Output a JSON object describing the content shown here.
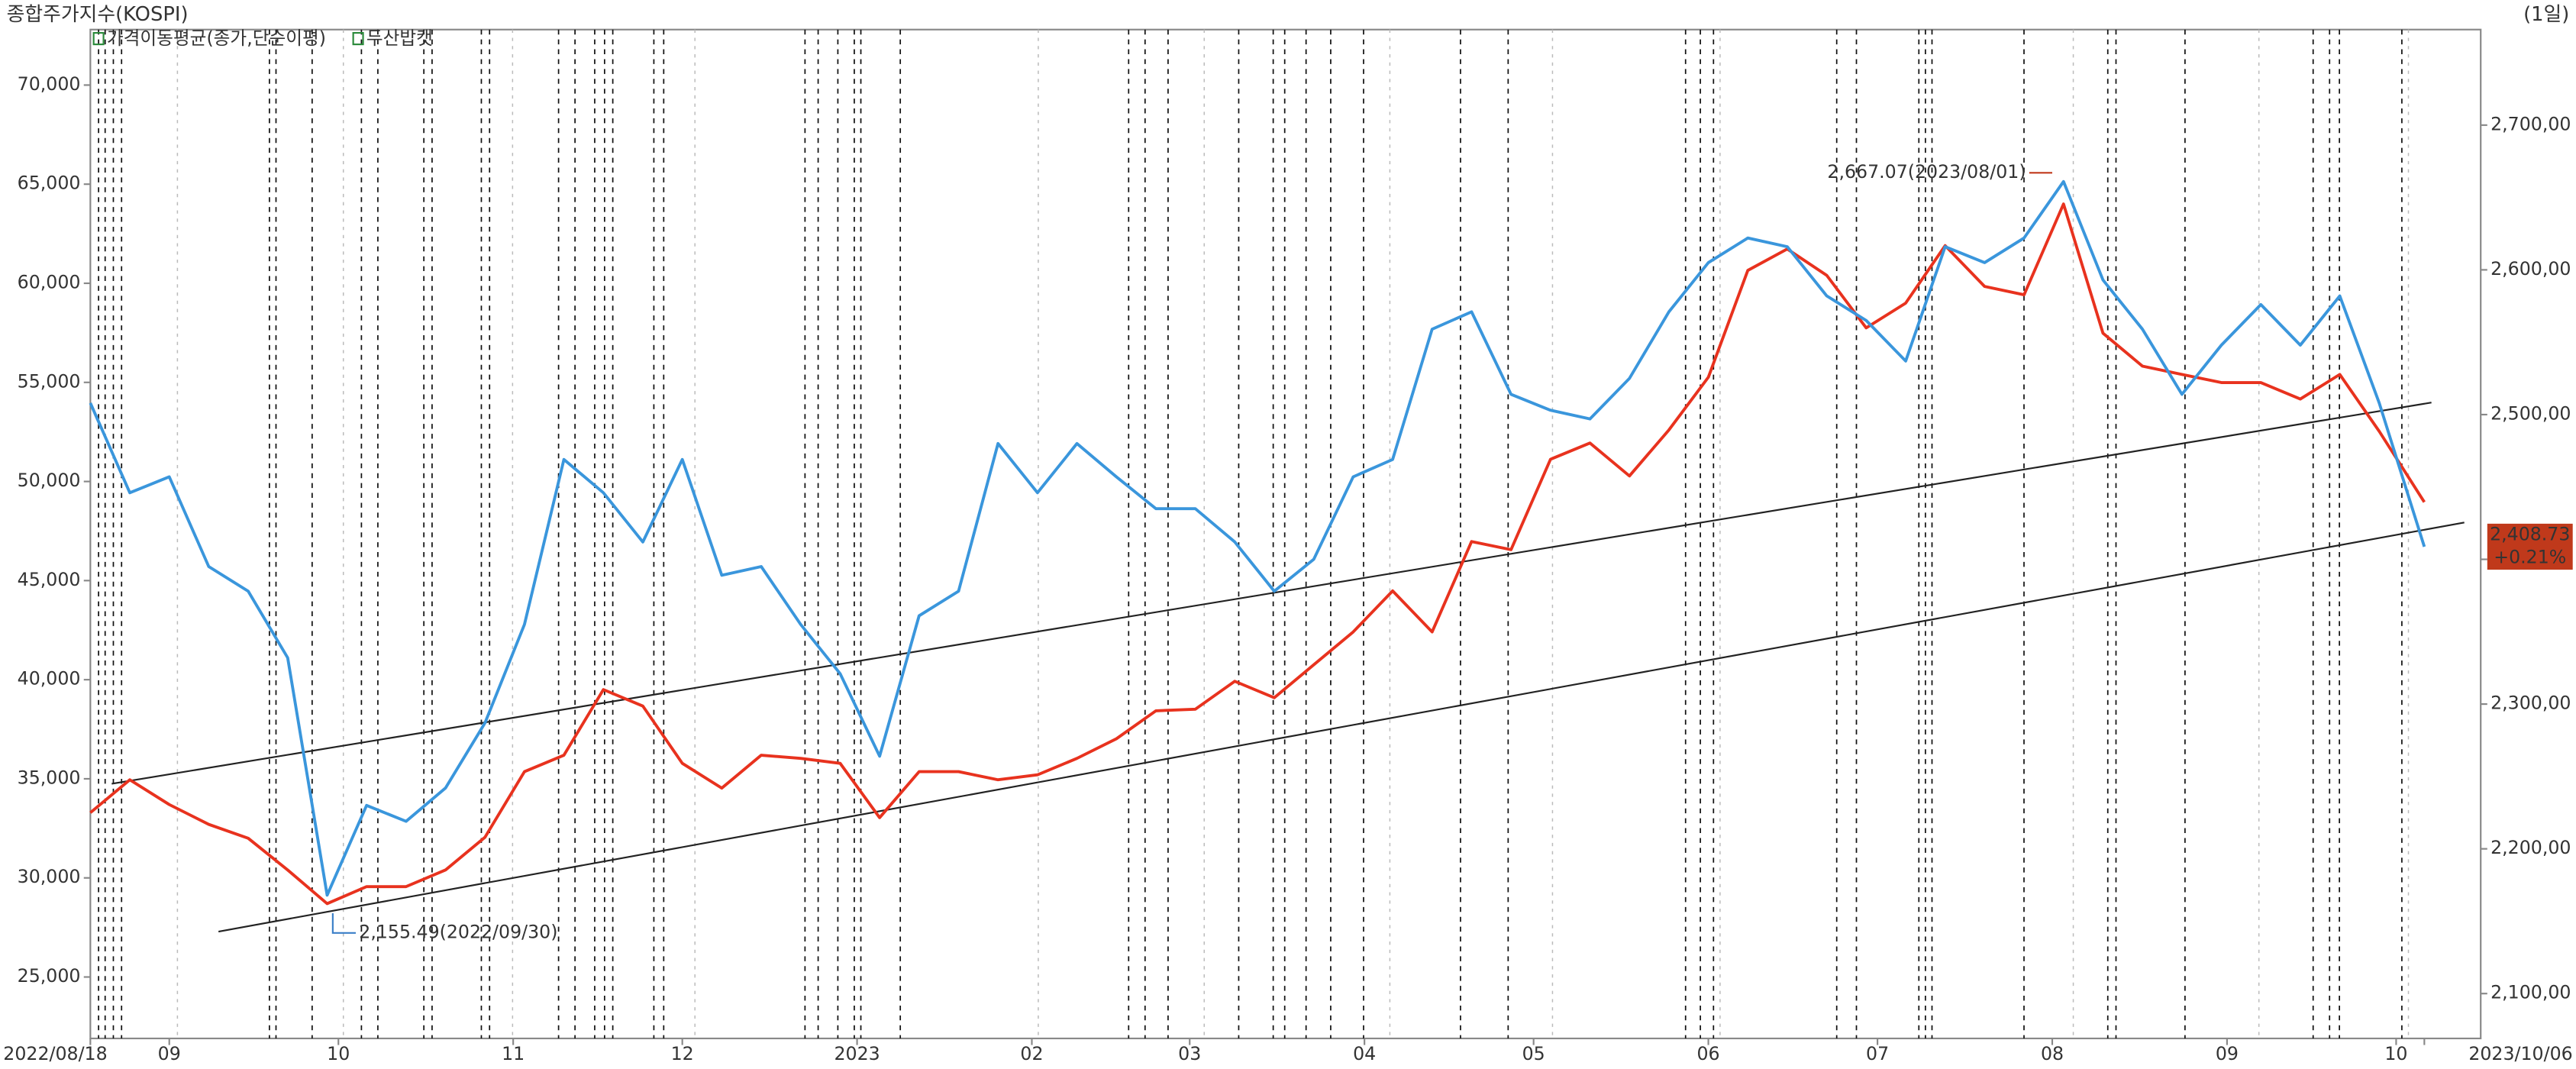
{
  "chart_data": {
    "type": "line",
    "title": "종합주가지수(KOSPI)",
    "period": "(1일)",
    "indicator": "가격이동평균(종가,단순이평)",
    "x": [
      "2022-08-18",
      "2022-08-25",
      "2022-09-01",
      "2022-09-08",
      "2022-09-15",
      "2022-09-22",
      "2022-09-29",
      "2022-10-06",
      "2022-10-13",
      "2022-10-20",
      "2022-10-27",
      "2022-11-03",
      "2022-11-10",
      "2022-11-17",
      "2022-11-24",
      "2022-12-01",
      "2022-12-08",
      "2022-12-15",
      "2022-12-22",
      "2022-12-29",
      "2023-01-05",
      "2023-01-12",
      "2023-01-19",
      "2023-01-26",
      "2023-02-02",
      "2023-02-09",
      "2023-02-16",
      "2023-02-23",
      "2023-03-02",
      "2023-03-09",
      "2023-03-16",
      "2023-03-23",
      "2023-03-30",
      "2023-04-06",
      "2023-04-13",
      "2023-04-20",
      "2023-04-27",
      "2023-05-04",
      "2023-05-11",
      "2023-05-18",
      "2023-05-25",
      "2023-06-01",
      "2023-06-08",
      "2023-06-15",
      "2023-06-22",
      "2023-06-29",
      "2023-07-06",
      "2023-07-13",
      "2023-07-20",
      "2023-07-27",
      "2023-08-03",
      "2023-08-10",
      "2023-08-17",
      "2023-08-24",
      "2023-08-31",
      "2023-09-07",
      "2023-09-14",
      "2023-09-21",
      "2023-09-28",
      "2023-10-06"
    ],
    "series": [
      {
        "name": "두산밥캣",
        "color": "#e8321e",
        "axis": "y",
        "values": [
          33290,
          34950,
          33700,
          32700,
          32000,
          30400,
          28700,
          29560,
          29560,
          30400,
          32050,
          35360,
          36190,
          39500,
          38670,
          35780,
          34530,
          36190,
          36030,
          35780,
          33040,
          35360,
          35360,
          34950,
          35200,
          36030,
          37020,
          38430,
          38510,
          39920,
          39090,
          40750,
          42410,
          44480,
          42410,
          46970,
          46560,
          51120,
          51940,
          50280,
          52600,
          55260,
          60650,
          61730,
          60400,
          57750,
          59000,
          61900,
          59840,
          59420,
          64000,
          57480,
          55820,
          55400,
          54990,
          54990,
          54160,
          55400,
          52530,
          48960
        ]
      },
      {
        "color": "#3a96dc",
        "axis": "y2",
        "values": [
          2508,
          2446,
          2457,
          2395,
          2378,
          2332,
          2168,
          2230,
          2219,
          2242,
          2287,
          2355,
          2469,
          2446,
          2412,
          2469,
          2389,
          2395,
          2355,
          2321,
          2264,
          2361,
          2378,
          2480,
          2446,
          2480,
          2457,
          2435,
          2435,
          2412,
          2378,
          2400,
          2457,
          2469,
          2559,
          2571,
          2514,
          2503,
          2497,
          2525,
          2571,
          2605,
          2622,
          2616,
          2582,
          2565,
          2537,
          2616,
          2605,
          2622,
          2661,
          2593,
          2559,
          2514,
          2548,
          2576,
          2548,
          2582,
          2508,
          2408.73
        ]
      }
    ],
    "xlim": [
      "2022-08-18",
      "2023-10-16"
    ],
    "xticks": [
      {
        "value": "2022-08-18",
        "label": "2022/08/18"
      },
      {
        "value": "2022-09-01",
        "label": "09"
      },
      {
        "value": "2022-10-01",
        "label": "10"
      },
      {
        "value": "2022-11-01",
        "label": "11"
      },
      {
        "value": "2022-12-01",
        "label": "12"
      },
      {
        "value": "2023-01-01",
        "label": "2023"
      },
      {
        "value": "2023-02-01",
        "label": "02"
      },
      {
        "value": "2023-03-01",
        "label": "03"
      },
      {
        "value": "2023-04-01",
        "label": "04"
      },
      {
        "value": "2023-05-01",
        "label": "05"
      },
      {
        "value": "2023-06-01",
        "label": "06"
      },
      {
        "value": "2023-07-01",
        "label": "07"
      },
      {
        "value": "2023-08-01",
        "label": "08"
      },
      {
        "value": "2023-09-01",
        "label": "09"
      },
      {
        "value": "2023-10-01",
        "label": "10"
      },
      {
        "value": "2023-10-06",
        "label": "2023/10/06"
      }
    ],
    "ylim": [
      21900,
      72800
    ],
    "yticks": [
      {
        "value": 25000,
        "label": "25,000"
      },
      {
        "value": 30000,
        "label": "30,000"
      },
      {
        "value": 35000,
        "label": "35,000"
      },
      {
        "value": 40000,
        "label": "40,000"
      },
      {
        "value": 45000,
        "label": "45,000"
      },
      {
        "value": 50000,
        "label": "50,000"
      },
      {
        "value": 55000,
        "label": "55,000"
      },
      {
        "value": 60000,
        "label": "60,000"
      },
      {
        "value": 65000,
        "label": "65,000"
      },
      {
        "value": 70000,
        "label": "70,000"
      }
    ],
    "y2lim": [
      2069,
      2766
    ],
    "y2ticks": [
      {
        "value": 2100,
        "label": "2,100,00"
      },
      {
        "value": 2200,
        "label": "2,200,00"
      },
      {
        "value": 2300,
        "label": "2,300,00"
      },
      {
        "value": 2400,
        "label": "2,400,00"
      },
      {
        "value": 2500,
        "label": "2,500,00"
      },
      {
        "value": 2600,
        "label": "2,600,00"
      },
      {
        "value": 2700,
        "label": "2,700,00"
      }
    ],
    "annotations": [
      {
        "text": "2,667.07(2023/08/01)",
        "x": "2023-08-01",
        "y": 2667.07,
        "color": "#c0391b"
      },
      {
        "text": "2,155.49(2022/09/30)",
        "x": "2022-09-30",
        "y": 2155.49,
        "color": "#3a7fc8"
      }
    ],
    "last_labels": {
      "value": "2,408.73",
      "change": "+0.21%",
      "color": "#c0391b"
    }
  }
}
